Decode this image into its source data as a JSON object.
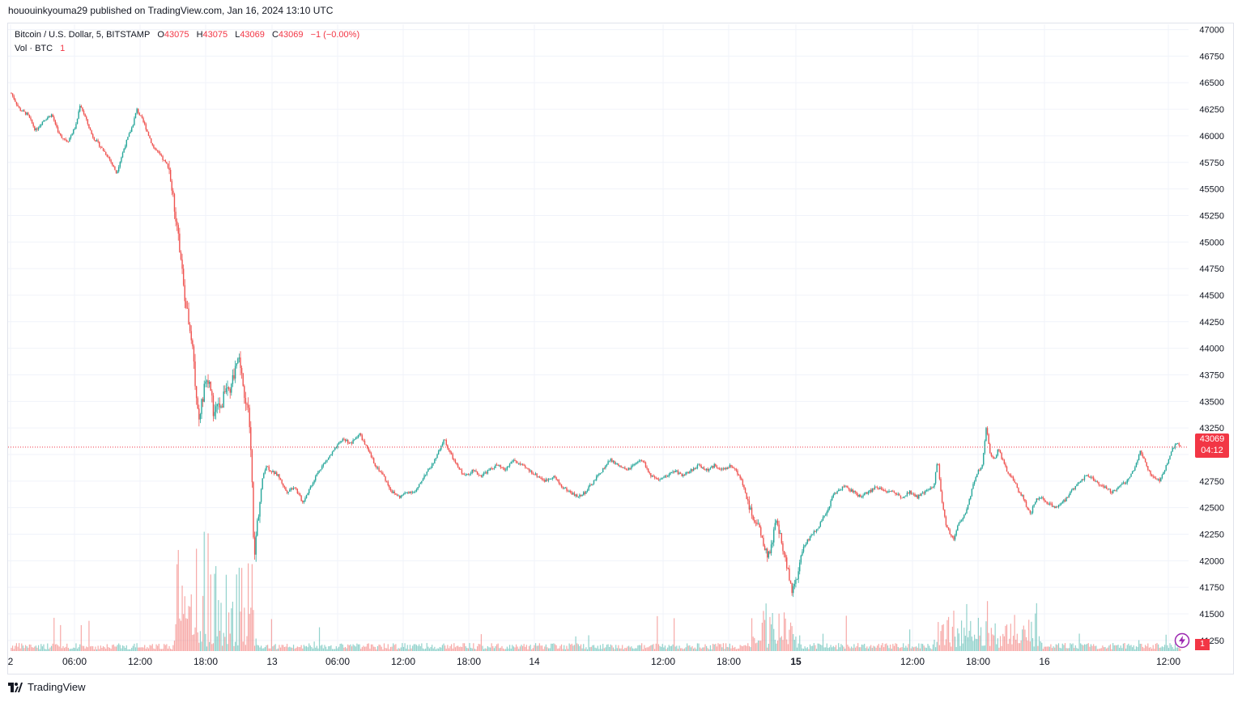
{
  "header": {
    "publish_line": "hououinkyouma29 published on TradingView.com, Jan 16, 2024 13:10 UTC"
  },
  "legend": {
    "symbol": "Bitcoin / U.S. Dollar, 5, BITSTAMP",
    "o_label": "O",
    "o_value": "43075",
    "h_label": "H",
    "h_value": "43075",
    "l_label": "L",
    "l_value": "43069",
    "c_label": "C",
    "c_value": "43069",
    "change": "−1 (−0.00%)",
    "vol_label": "Vol · BTC",
    "vol_value": "1"
  },
  "badges": {
    "last_price": "43069",
    "countdown": "04:12",
    "last_volume": "1"
  },
  "footer": {
    "brand": "TradingView"
  },
  "colors": {
    "up": "#26a69a",
    "down": "#ef5350",
    "last_line": "#f23645",
    "grid": "#f0f3fa"
  },
  "chart_data": {
    "type": "candlestick",
    "symbol": "BTCUSD",
    "exchange": "BITSTAMP",
    "interval_minutes": 5,
    "y_axis": {
      "ticks": [
        47000,
        46750,
        46500,
        46250,
        46000,
        45750,
        45500,
        45250,
        45000,
        44750,
        44500,
        44250,
        44000,
        43750,
        43500,
        43250,
        43000,
        42750,
        42500,
        42250,
        42000,
        41750,
        41500,
        41250
      ],
      "ylim": [
        41150,
        47050
      ]
    },
    "x_axis": {
      "ticks": [
        "2",
        "06:00",
        "12:00",
        "18:00",
        "13",
        "06:00",
        "12:00",
        "18:00",
        "14",
        "12:00",
        "18:00",
        "15",
        "12:00",
        "18:00",
        "16",
        "12:00"
      ],
      "bold_ticks": [
        "15"
      ]
    },
    "last_price": 43069,
    "price_path": [
      [
        0,
        46400
      ],
      [
        10,
        46250
      ],
      [
        20,
        46200
      ],
      [
        30,
        46050
      ],
      [
        40,
        46150
      ],
      [
        50,
        46200
      ],
      [
        60,
        46000
      ],
      [
        70,
        45950
      ],
      [
        80,
        46100
      ],
      [
        85,
        46300
      ],
      [
        90,
        46200
      ],
      [
        100,
        46000
      ],
      [
        110,
        45900
      ],
      [
        120,
        45800
      ],
      [
        130,
        45650
      ],
      [
        140,
        45900
      ],
      [
        150,
        46100
      ],
      [
        155,
        46250
      ],
      [
        165,
        46100
      ],
      [
        175,
        45900
      ],
      [
        185,
        45800
      ],
      [
        195,
        45700
      ],
      [
        200,
        45400
      ],
      [
        205,
        45150
      ],
      [
        210,
        44800
      ],
      [
        215,
        44450
      ],
      [
        220,
        44250
      ],
      [
        225,
        44000
      ],
      [
        228,
        43550
      ],
      [
        232,
        43350
      ],
      [
        236,
        43500
      ],
      [
        240,
        43700
      ],
      [
        245,
        43650
      ],
      [
        250,
        43400
      ],
      [
        255,
        43550
      ],
      [
        260,
        43400
      ],
      [
        265,
        43700
      ],
      [
        270,
        43550
      ],
      [
        275,
        43750
      ],
      [
        280,
        43950
      ],
      [
        285,
        43700
      ],
      [
        290,
        43500
      ],
      [
        293,
        43400
      ],
      [
        297,
        42900
      ],
      [
        300,
        41950
      ],
      [
        303,
        42300
      ],
      [
        307,
        42550
      ],
      [
        311,
        42800
      ],
      [
        315,
        42900
      ],
      [
        320,
        42850
      ],
      [
        330,
        42800
      ],
      [
        340,
        42650
      ],
      [
        350,
        42700
      ],
      [
        360,
        42550
      ],
      [
        370,
        42700
      ],
      [
        380,
        42850
      ],
      [
        390,
        42950
      ],
      [
        400,
        43050
      ],
      [
        410,
        43150
      ],
      [
        420,
        43100
      ],
      [
        430,
        43200
      ],
      [
        440,
        43050
      ],
      [
        450,
        42900
      ],
      [
        460,
        42800
      ],
      [
        470,
        42650
      ],
      [
        480,
        42600
      ],
      [
        490,
        42650
      ],
      [
        500,
        42650
      ],
      [
        510,
        42800
      ],
      [
        520,
        42900
      ],
      [
        530,
        43050
      ],
      [
        535,
        43150
      ],
      [
        540,
        43050
      ],
      [
        550,
        42900
      ],
      [
        560,
        42800
      ],
      [
        570,
        42850
      ],
      [
        580,
        42800
      ],
      [
        590,
        42850
      ],
      [
        600,
        42900
      ],
      [
        610,
        42850
      ],
      [
        620,
        42950
      ],
      [
        630,
        42900
      ],
      [
        640,
        42850
      ],
      [
        650,
        42800
      ],
      [
        660,
        42750
      ],
      [
        670,
        42800
      ],
      [
        680,
        42700
      ],
      [
        690,
        42650
      ],
      [
        700,
        42600
      ],
      [
        710,
        42650
      ],
      [
        720,
        42750
      ],
      [
        730,
        42850
      ],
      [
        740,
        42950
      ],
      [
        750,
        42900
      ],
      [
        760,
        42850
      ],
      [
        770,
        42900
      ],
      [
        780,
        42950
      ],
      [
        790,
        42800
      ],
      [
        800,
        42750
      ],
      [
        810,
        42800
      ],
      [
        820,
        42850
      ],
      [
        830,
        42800
      ],
      [
        840,
        42850
      ],
      [
        850,
        42900
      ],
      [
        860,
        42850
      ],
      [
        870,
        42900
      ],
      [
        880,
        42850
      ],
      [
        890,
        42900
      ],
      [
        900,
        42800
      ],
      [
        905,
        42700
      ],
      [
        910,
        42550
      ],
      [
        915,
        42450
      ],
      [
        920,
        42350
      ],
      [
        925,
        42300
      ],
      [
        930,
        42150
      ],
      [
        935,
        42050
      ],
      [
        940,
        42150
      ],
      [
        945,
        42400
      ],
      [
        950,
        42250
      ],
      [
        955,
        42050
      ],
      [
        960,
        41900
      ],
      [
        965,
        41700
      ],
      [
        970,
        41800
      ],
      [
        975,
        42000
      ],
      [
        980,
        42150
      ],
      [
        990,
        42250
      ],
      [
        1000,
        42350
      ],
      [
        1010,
        42500
      ],
      [
        1015,
        42600
      ],
      [
        1020,
        42650
      ],
      [
        1030,
        42700
      ],
      [
        1040,
        42650
      ],
      [
        1050,
        42600
      ],
      [
        1060,
        42650
      ],
      [
        1070,
        42700
      ],
      [
        1080,
        42650
      ],
      [
        1090,
        42650
      ],
      [
        1100,
        42600
      ],
      [
        1110,
        42650
      ],
      [
        1120,
        42600
      ],
      [
        1130,
        42650
      ],
      [
        1140,
        42700
      ],
      [
        1145,
        42950
      ],
      [
        1150,
        42550
      ],
      [
        1155,
        42350
      ],
      [
        1160,
        42250
      ],
      [
        1165,
        42200
      ],
      [
        1170,
        42350
      ],
      [
        1180,
        42450
      ],
      [
        1185,
        42600
      ],
      [
        1190,
        42750
      ],
      [
        1195,
        42850
      ],
      [
        1200,
        42900
      ],
      [
        1205,
        43250
      ],
      [
        1210,
        43000
      ],
      [
        1215,
        42950
      ],
      [
        1220,
        43050
      ],
      [
        1225,
        42950
      ],
      [
        1230,
        42850
      ],
      [
        1235,
        42800
      ],
      [
        1240,
        42750
      ],
      [
        1245,
        42650
      ],
      [
        1250,
        42600
      ],
      [
        1255,
        42500
      ],
      [
        1260,
        42450
      ],
      [
        1265,
        42550
      ],
      [
        1270,
        42600
      ],
      [
        1280,
        42550
      ],
      [
        1290,
        42500
      ],
      [
        1300,
        42550
      ],
      [
        1310,
        42650
      ],
      [
        1320,
        42750
      ],
      [
        1330,
        42800
      ],
      [
        1340,
        42750
      ],
      [
        1350,
        42700
      ],
      [
        1360,
        42650
      ],
      [
        1370,
        42700
      ],
      [
        1380,
        42750
      ],
      [
        1390,
        42900
      ],
      [
        1395,
        43050
      ],
      [
        1400,
        42950
      ],
      [
        1405,
        42850
      ],
      [
        1410,
        42800
      ],
      [
        1420,
        42750
      ],
      [
        1425,
        42850
      ],
      [
        1430,
        42950
      ],
      [
        1435,
        43050
      ],
      [
        1440,
        43100
      ],
      [
        1445,
        43069
      ]
    ],
    "volume_bursts": [
      {
        "x_from": 200,
        "x_to": 300,
        "peak_btc": "high"
      },
      {
        "x_from": 915,
        "x_to": 975,
        "peak_btc": "medium"
      },
      {
        "x_from": 1140,
        "x_to": 1275,
        "peak_btc": "medium"
      }
    ]
  }
}
